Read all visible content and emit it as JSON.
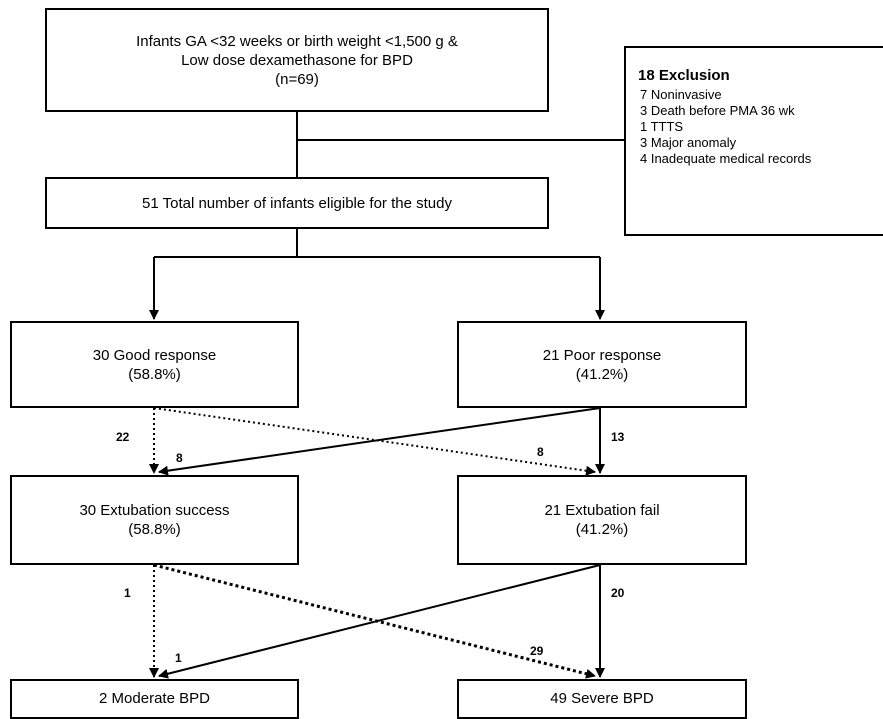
{
  "boxes": {
    "source": {
      "line1": "Infants GA <32 weeks or birth weight <1,500 g &",
      "line2": "Low dose dexamethasone for BPD",
      "line3": "(n=69)"
    },
    "exclusion": {
      "title": "18 Exclusion",
      "items": [
        "7 Noninvasive",
        "3 Death before PMA 36 wk",
        "1 TTTS",
        "3 Major anomaly",
        "4  Inadequate medical records"
      ]
    },
    "eligible": {
      "line1": "51 Total number of infants eligible for the study"
    },
    "good_response": {
      "line1": "30 Good response",
      "line2": "(58.8%)"
    },
    "poor_response": {
      "line1": "21 Poor response",
      "line2": "(41.2%)"
    },
    "extubation_success": {
      "line1": "30 Extubation success",
      "line2": "(58.8%)"
    },
    "extubation_fail": {
      "line1": "21 Extubation fail",
      "line2": "(41.2%)"
    },
    "moderate_bpd": {
      "line1": "2 Moderate BPD"
    },
    "severe_bpd": {
      "line1": "49 Severe BPD"
    }
  },
  "flow_labels": {
    "good_to_success": "22",
    "poor_to_success": "8",
    "good_to_fail": "8",
    "poor_to_fail": "13",
    "success_to_moderate": "1",
    "fail_to_moderate": "1",
    "success_to_severe": "29",
    "fail_to_severe": "20"
  }
}
